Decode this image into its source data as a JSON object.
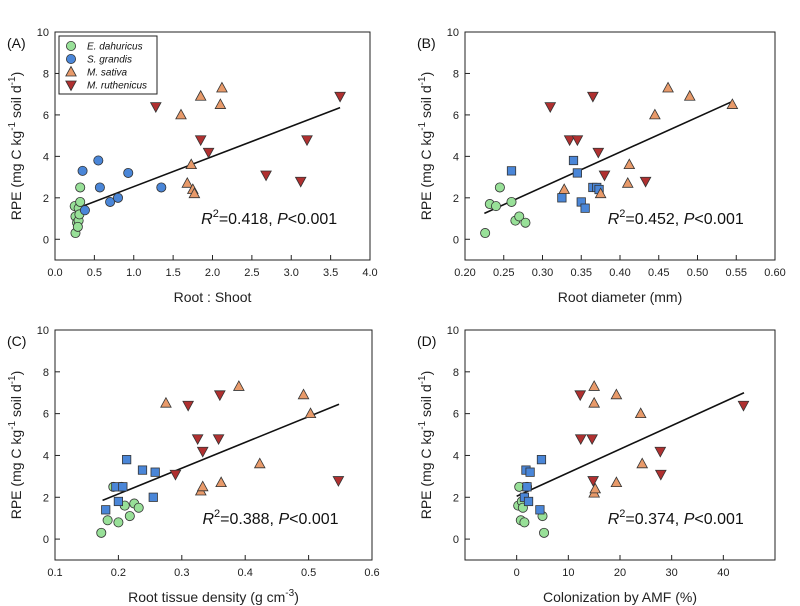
{
  "figure_title": "",
  "chart_data": [
    {
      "panel_label": "(A)",
      "type": "scatter",
      "xlabel": "Root : Shoot",
      "ylabel": "RPE (mg C kg⁻¹ soil d⁻¹)",
      "xlim": [
        0.0,
        4.0
      ],
      "ylim": [
        -1,
        10
      ],
      "xticks": [
        "0.0",
        "0.5",
        "1.0",
        "1.5",
        "2.0",
        "2.5",
        "3.0",
        "3.5",
        "4.0"
      ],
      "yticks": [
        "0",
        "2",
        "4",
        "6",
        "8",
        "10"
      ],
      "annotation": {
        "r2": "=0.418",
        "p": "<0.001"
      },
      "fit_line": {
        "x": [
          0.25,
          3.62
        ],
        "y": [
          1.45,
          6.35
        ]
      },
      "legend": {
        "placement": "top-left",
        "entries": [
          "E. dahuricus",
          "S. grandis",
          "M. sativa",
          "M. ruthenicus"
        ]
      },
      "series": [
        {
          "name": "E. dahuricus",
          "marker": "circle",
          "color": "#98e098",
          "x": [
            0.25,
            0.26,
            0.28,
            0.3,
            0.32,
            0.32,
            0.3,
            0.31,
            0.26,
            0.29
          ],
          "y": [
            1.6,
            1.1,
            0.8,
            1.5,
            1.8,
            2.5,
            0.9,
            1.2,
            0.3,
            0.6
          ]
        },
        {
          "name": "S. grandis",
          "marker": "circle",
          "color": "#4a86d8",
          "x": [
            0.35,
            0.38,
            0.55,
            0.57,
            0.7,
            0.8,
            0.93,
            1.35
          ],
          "y": [
            3.3,
            1.4,
            3.8,
            2.5,
            1.8,
            2.0,
            3.2,
            2.5
          ]
        },
        {
          "name": "M. sativa",
          "marker": "triangle-up",
          "color": "#e89a6a",
          "x": [
            1.6,
            1.68,
            1.73,
            1.75,
            1.77,
            1.85,
            2.1,
            2.12
          ],
          "y": [
            6.0,
            2.7,
            3.6,
            2.4,
            2.2,
            6.9,
            6.5,
            7.3
          ]
        },
        {
          "name": "M. ruthenicus",
          "marker": "triangle-down",
          "color": "#b03030",
          "x": [
            1.28,
            1.85,
            1.95,
            2.68,
            3.12,
            3.2,
            3.62
          ],
          "y": [
            6.4,
            4.8,
            4.2,
            3.1,
            2.8,
            4.8,
            6.9
          ]
        }
      ]
    },
    {
      "panel_label": "(B)",
      "type": "scatter",
      "xlabel": "Root diameter (mm)",
      "ylabel": "RPE (mg C kg⁻¹ soil d⁻¹)",
      "xlim": [
        0.2,
        0.6
      ],
      "ylim": [
        -1,
        10
      ],
      "xticks": [
        "0.20",
        "0.25",
        "0.30",
        "0.35",
        "0.40",
        "0.45",
        "0.50",
        "0.55",
        "0.60"
      ],
      "yticks": [
        "0",
        "2",
        "4",
        "6",
        "8",
        "10"
      ],
      "annotation": {
        "r2": "=0.452",
        "p": "<0.001"
      },
      "fit_line": {
        "x": [
          0.225,
          0.545
        ],
        "y": [
          1.25,
          6.65
        ]
      },
      "legend": null,
      "series": [
        {
          "name": "E. dahuricus",
          "marker": "circle",
          "color": "#98e098",
          "x": [
            0.226,
            0.232,
            0.24,
            0.245,
            0.26,
            0.265,
            0.27,
            0.278
          ],
          "y": [
            0.3,
            1.7,
            1.6,
            2.5,
            1.8,
            0.9,
            1.1,
            0.8
          ]
        },
        {
          "name": "S. grandis",
          "marker": "square",
          "color": "#4a86d8",
          "x": [
            0.26,
            0.325,
            0.34,
            0.345,
            0.35,
            0.355,
            0.365,
            0.37,
            0.373
          ],
          "y": [
            3.3,
            2.0,
            3.8,
            3.2,
            1.8,
            1.5,
            2.5,
            2.5,
            2.4
          ]
        },
        {
          "name": "M. sativa",
          "marker": "triangle-up",
          "color": "#e89a6a",
          "x": [
            0.328,
            0.375,
            0.41,
            0.412,
            0.445,
            0.462,
            0.49,
            0.545
          ],
          "y": [
            2.4,
            2.2,
            2.7,
            3.6,
            6.0,
            7.3,
            6.9,
            6.5
          ]
        },
        {
          "name": "M. ruthenicus",
          "marker": "triangle-down",
          "color": "#b03030",
          "x": [
            0.31,
            0.335,
            0.345,
            0.365,
            0.372,
            0.38,
            0.433
          ],
          "y": [
            6.4,
            4.8,
            4.8,
            6.9,
            4.2,
            3.1,
            2.8
          ]
        }
      ]
    },
    {
      "panel_label": "(C)",
      "type": "scatter",
      "xlabel": "Root tissue density (g cm⁻³)",
      "ylabel": "RPE (mg C kg⁻¹ soil d⁻¹)",
      "xlim": [
        0.1,
        0.6
      ],
      "ylim": [
        -1,
        10
      ],
      "xticks": [
        "0.1",
        "0.2",
        "0.3",
        "0.4",
        "0.5",
        "0.6"
      ],
      "yticks": [
        "0",
        "2",
        "4",
        "6",
        "8",
        "10"
      ],
      "annotation": {
        "r2": "=0.388",
        "p": "<0.001"
      },
      "fit_line": {
        "x": [
          0.175,
          0.548
        ],
        "y": [
          1.85,
          6.45
        ]
      },
      "legend": null,
      "series": [
        {
          "name": "E. dahuricus",
          "marker": "circle",
          "color": "#98e098",
          "x": [
            0.173,
            0.183,
            0.192,
            0.2,
            0.205,
            0.21,
            0.218,
            0.225,
            0.232
          ],
          "y": [
            0.3,
            0.9,
            2.5,
            0.8,
            2.5,
            1.6,
            1.1,
            1.7,
            1.5
          ]
        },
        {
          "name": "S. grandis",
          "marker": "square",
          "color": "#4a86d8",
          "x": [
            0.18,
            0.196,
            0.2,
            0.207,
            0.213,
            0.238,
            0.255,
            0.258
          ],
          "y": [
            1.4,
            2.5,
            1.8,
            2.5,
            3.8,
            3.3,
            2.0,
            3.2
          ]
        },
        {
          "name": "M. sativa",
          "marker": "triangle-up",
          "color": "#e89a6a",
          "x": [
            0.275,
            0.33,
            0.333,
            0.362,
            0.39,
            0.423,
            0.492,
            0.503
          ],
          "y": [
            6.5,
            2.3,
            2.5,
            2.7,
            7.3,
            3.6,
            6.9,
            6.0
          ]
        },
        {
          "name": "M. ruthenicus",
          "marker": "triangle-down",
          "color": "#b03030",
          "x": [
            0.29,
            0.31,
            0.325,
            0.333,
            0.358,
            0.36,
            0.547
          ],
          "y": [
            3.1,
            6.4,
            4.8,
            4.2,
            4.8,
            6.9,
            2.8
          ]
        }
      ]
    },
    {
      "panel_label": "(D)",
      "type": "scatter",
      "xlabel": "Colonization by AMF (%)",
      "ylabel": "RPE (mg C kg⁻¹ soil d⁻¹)",
      "xlim": [
        -10,
        50
      ],
      "ylim": [
        -1,
        10
      ],
      "xticks": [
        "0",
        "10",
        "20",
        "30",
        "40"
      ],
      "yticks": [
        "0",
        "2",
        "4",
        "6",
        "8",
        "10"
      ],
      "annotation": {
        "r2": "=0.374",
        "p": "<0.001"
      },
      "fit_line": {
        "x": [
          0.0,
          44.0
        ],
        "y": [
          2.05,
          7.0
        ]
      },
      "legend": null,
      "series": [
        {
          "name": "E. dahuricus",
          "marker": "circle",
          "color": "#98e098",
          "x": [
            0.3,
            0.5,
            0.8,
            1.0,
            1.2,
            1.5,
            2.0,
            5.0,
            5.3
          ],
          "y": [
            1.6,
            2.5,
            0.9,
            1.8,
            1.5,
            0.8,
            2.5,
            1.1,
            0.3
          ]
        },
        {
          "name": "S. grandis",
          "marker": "square",
          "color": "#4a86d8",
          "x": [
            1.5,
            1.8,
            2.0,
            2.3,
            2.6,
            4.5,
            4.8
          ],
          "y": [
            2.0,
            3.3,
            2.5,
            1.8,
            3.2,
            1.4,
            3.8
          ]
        },
        {
          "name": "M. sativa",
          "marker": "triangle-up",
          "color": "#e89a6a",
          "x": [
            15.0,
            15.0,
            15.0,
            15.2,
            19.3,
            19.3,
            24.0,
            24.3
          ],
          "y": [
            6.5,
            7.3,
            2.2,
            2.4,
            6.9,
            2.7,
            6.0,
            3.6
          ]
        },
        {
          "name": "M. ruthenicus",
          "marker": "triangle-down",
          "color": "#b03030",
          "x": [
            12.3,
            12.4,
            14.6,
            14.8,
            27.8,
            27.9,
            43.9
          ],
          "y": [
            6.9,
            4.8,
            4.8,
            2.8,
            4.2,
            3.1,
            6.4
          ]
        }
      ]
    }
  ]
}
